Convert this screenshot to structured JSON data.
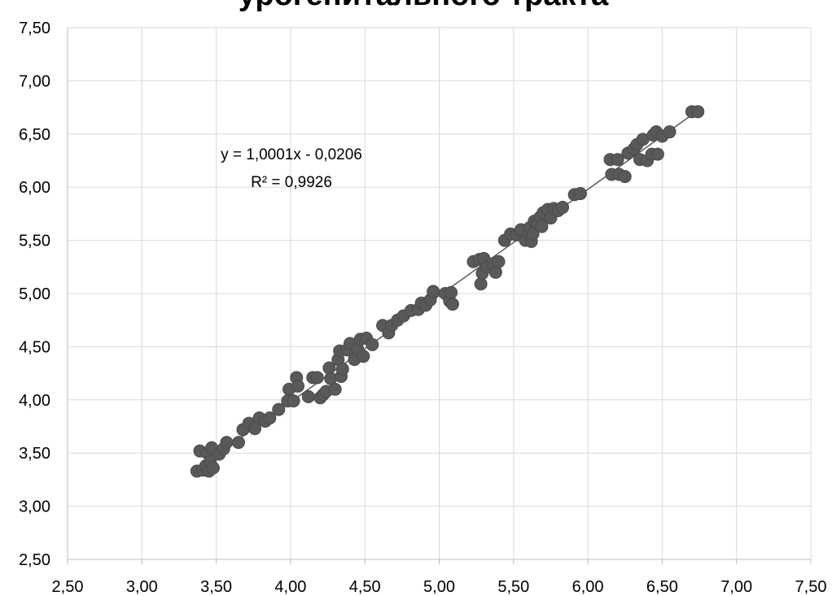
{
  "chart_data": {
    "type": "scatter",
    "title": "урогенитального тракта",
    "xlabel": "",
    "ylabel": "",
    "xlim": [
      2.5,
      7.5
    ],
    "ylim": [
      2.5,
      7.5
    ],
    "grid": true,
    "x_ticks": [
      "2,50",
      "3,00",
      "3,50",
      "4,00",
      "4,50",
      "5,00",
      "5,50",
      "6,00",
      "6,50",
      "7,00",
      "7,50"
    ],
    "y_ticks": [
      "2,50",
      "3,00",
      "3,50",
      "4,00",
      "4,50",
      "5,00",
      "5,50",
      "6,00",
      "6,50",
      "7,00",
      "7,50"
    ],
    "trendline": {
      "slope": 1.0001,
      "intercept": -0.0206,
      "equation": "y = 1,0001x - 0,0206",
      "r2": "R² = 0,9926"
    },
    "point_color": "#595959",
    "grid_color": "#d9d9d9",
    "points": [
      [
        3.37,
        3.33
      ],
      [
        3.39,
        3.52
      ],
      [
        3.41,
        3.34
      ],
      [
        3.43,
        3.38
      ],
      [
        3.44,
        3.5
      ],
      [
        3.45,
        3.33
      ],
      [
        3.46,
        3.42
      ],
      [
        3.47,
        3.55
      ],
      [
        3.48,
        3.36
      ],
      [
        3.52,
        3.49
      ],
      [
        3.55,
        3.54
      ],
      [
        3.57,
        3.6
      ],
      [
        3.65,
        3.6
      ],
      [
        3.68,
        3.72
      ],
      [
        3.72,
        3.78
      ],
      [
        3.76,
        3.73
      ],
      [
        3.79,
        3.83
      ],
      [
        3.83,
        3.8
      ],
      [
        3.86,
        3.83
      ],
      [
        3.92,
        3.91
      ],
      [
        3.98,
        3.99
      ],
      [
        3.99,
        4.1
      ],
      [
        4.02,
        3.99
      ],
      [
        4.04,
        4.21
      ],
      [
        4.05,
        4.13
      ],
      [
        4.12,
        4.03
      ],
      [
        4.15,
        4.21
      ],
      [
        4.18,
        4.21
      ],
      [
        4.2,
        4.02
      ],
      [
        4.22,
        4.05
      ],
      [
        4.24,
        4.08
      ],
      [
        4.26,
        4.3
      ],
      [
        4.27,
        4.2
      ],
      [
        4.3,
        4.1
      ],
      [
        4.32,
        4.38
      ],
      [
        4.33,
        4.46
      ],
      [
        4.34,
        4.22
      ],
      [
        4.35,
        4.29
      ],
      [
        4.38,
        4.47
      ],
      [
        4.4,
        4.53
      ],
      [
        4.43,
        4.38
      ],
      [
        4.45,
        4.48
      ],
      [
        4.47,
        4.57
      ],
      [
        4.49,
        4.41
      ],
      [
        4.51,
        4.58
      ],
      [
        4.55,
        4.52
      ],
      [
        4.62,
        4.7
      ],
      [
        4.66,
        4.63
      ],
      [
        4.68,
        4.7
      ],
      [
        4.72,
        4.75
      ],
      [
        4.76,
        4.79
      ],
      [
        4.81,
        4.84
      ],
      [
        4.86,
        4.85
      ],
      [
        4.88,
        4.91
      ],
      [
        4.91,
        4.89
      ],
      [
        4.94,
        4.94
      ],
      [
        4.96,
        5.02
      ],
      [
        5.04,
        5.0
      ],
      [
        5.07,
        4.93
      ],
      [
        5.08,
        5.01
      ],
      [
        5.09,
        4.9
      ],
      [
        5.23,
        5.3
      ],
      [
        5.27,
        5.32
      ],
      [
        5.28,
        5.09
      ],
      [
        5.29,
        5.19
      ],
      [
        5.3,
        5.33
      ],
      [
        5.32,
        5.25
      ],
      [
        5.36,
        5.28
      ],
      [
        5.38,
        5.2
      ],
      [
        5.4,
        5.3
      ],
      [
        5.44,
        5.5
      ],
      [
        5.48,
        5.56
      ],
      [
        5.52,
        5.55
      ],
      [
        5.55,
        5.6
      ],
      [
        5.58,
        5.5
      ],
      [
        5.6,
        5.57
      ],
      [
        5.61,
        5.62
      ],
      [
        5.62,
        5.49
      ],
      [
        5.63,
        5.56
      ],
      [
        5.64,
        5.68
      ],
      [
        5.66,
        5.66
      ],
      [
        5.68,
        5.72
      ],
      [
        5.69,
        5.63
      ],
      [
        5.7,
        5.76
      ],
      [
        5.73,
        5.79
      ],
      [
        5.75,
        5.71
      ],
      [
        5.77,
        5.8
      ],
      [
        5.8,
        5.78
      ],
      [
        5.83,
        5.81
      ],
      [
        5.91,
        5.93
      ],
      [
        5.95,
        5.94
      ],
      [
        6.15,
        6.26
      ],
      [
        6.16,
        6.12
      ],
      [
        6.2,
        6.26
      ],
      [
        6.21,
        6.12
      ],
      [
        6.25,
        6.1
      ],
      [
        6.27,
        6.32
      ],
      [
        6.31,
        6.36
      ],
      [
        6.33,
        6.4
      ],
      [
        6.35,
        6.26
      ],
      [
        6.37,
        6.45
      ],
      [
        6.4,
        6.25
      ],
      [
        6.43,
        6.31
      ],
      [
        6.44,
        6.49
      ],
      [
        6.46,
        6.52
      ],
      [
        6.47,
        6.31
      ],
      [
        6.5,
        6.48
      ],
      [
        6.55,
        6.52
      ],
      [
        6.7,
        6.71
      ],
      [
        6.74,
        6.71
      ]
    ]
  }
}
